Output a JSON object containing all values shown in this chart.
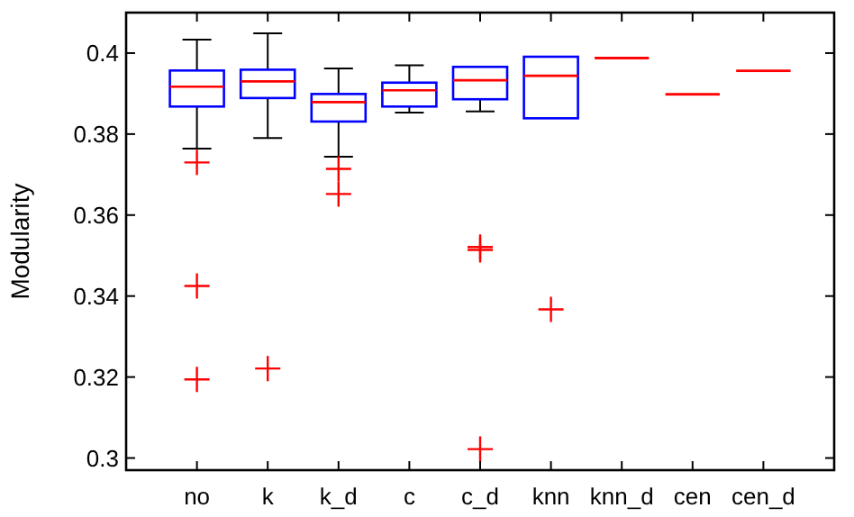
{
  "chart_data": {
    "type": "box",
    "ylabel": "Modularity",
    "categories": [
      "no",
      "k",
      "k_d",
      "c",
      "c_d",
      "knn",
      "knn_d",
      "cen",
      "cen_d"
    ],
    "ylim": [
      0.297,
      0.41
    ],
    "yticks": [
      0.3,
      0.32,
      0.34,
      0.36,
      0.38,
      0.4
    ],
    "grid": false,
    "series": [
      {
        "color": "#0000ff",
        "boxes": [
          {
            "low": 0.3764,
            "q1": 0.3868,
            "median": 0.3917,
            "q3": 0.3957,
            "high": 0.4033,
            "outliers": [
              0.373,
              0.3425,
              0.3194
            ]
          },
          {
            "low": 0.379,
            "q1": 0.3889,
            "median": 0.393,
            "q3": 0.3959,
            "high": 0.4049,
            "outliers": [
              0.3221
            ]
          },
          {
            "low": 0.3744,
            "q1": 0.3831,
            "median": 0.3879,
            "q3": 0.3899,
            "high": 0.3962,
            "outliers": [
              0.3714,
              0.3652
            ]
          },
          {
            "low": 0.3853,
            "q1": 0.3868,
            "median": 0.3908,
            "q3": 0.3927,
            "high": 0.397
          },
          {
            "low": 0.3856,
            "q1": 0.3886,
            "median": 0.3933,
            "q3": 0.3966,
            "high": 0.3966,
            "outliers": [
              0.3521,
              0.3514,
              0.3022
            ]
          },
          {
            "low": 0.3839,
            "q1": 0.3839,
            "median": 0.3944,
            "q3": 0.3991,
            "high": 0.3991,
            "outliers": [
              0.3367
            ]
          },
          null,
          null,
          null
        ]
      },
      {
        "color": "#ff0000",
        "boxes": [
          null,
          null,
          null,
          null,
          null,
          null,
          {
            "low": 0.3988,
            "q1": 0.3988,
            "median": 0.3988,
            "q3": 0.3988,
            "high": 0.3988
          },
          {
            "low": 0.3898,
            "q1": 0.3898,
            "median": 0.3898,
            "q3": 0.3898,
            "high": 0.3898
          },
          {
            "low": 0.3956,
            "q1": 0.3956,
            "median": 0.3956,
            "q3": 0.3956,
            "high": 0.3956
          }
        ]
      }
    ]
  }
}
